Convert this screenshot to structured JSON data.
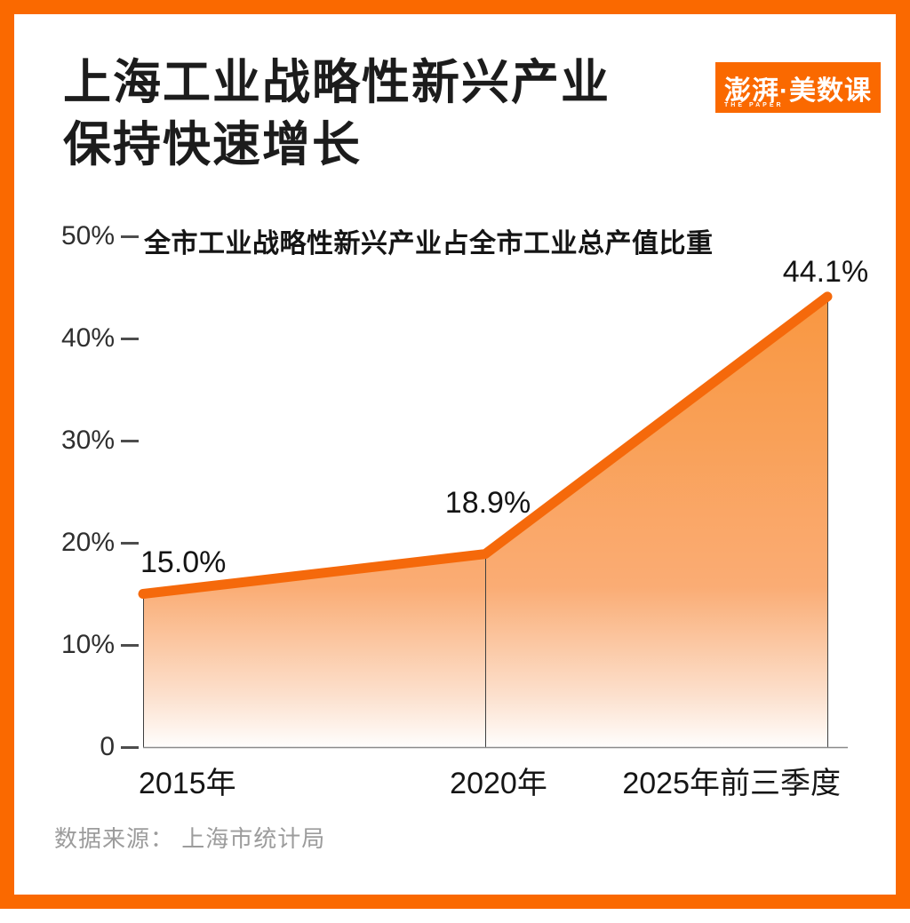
{
  "header": {
    "title_line1": "上海工业战略性新兴产业",
    "title_line2": "保持快速增长"
  },
  "logo": {
    "text": "澎湃·美数课",
    "subtext": "THE PAPER"
  },
  "chart_data": {
    "type": "area",
    "subtitle": "全市工业战略性新兴产业占全市工业总产值比重",
    "categories": [
      "2015年",
      "2020年",
      "2025年前三季度"
    ],
    "values": [
      15.0,
      18.9,
      44.1
    ],
    "point_labels": [
      "15.0%",
      "18.9%",
      "44.1%"
    ],
    "y_ticks": [
      "50%",
      "40%",
      "30%",
      "20%",
      "10%",
      "0"
    ],
    "ylim": [
      0,
      50
    ],
    "grid": false,
    "legend": false
  },
  "colors": {
    "frame": "#FA6900",
    "line": "#F5690B",
    "fill_top": "#F99741",
    "fill_bottom": "#FFFFFF",
    "guide_line": "#3F3F3F",
    "baseline": "#8A8A8A"
  },
  "source": "数据来源： 上海市统计局"
}
